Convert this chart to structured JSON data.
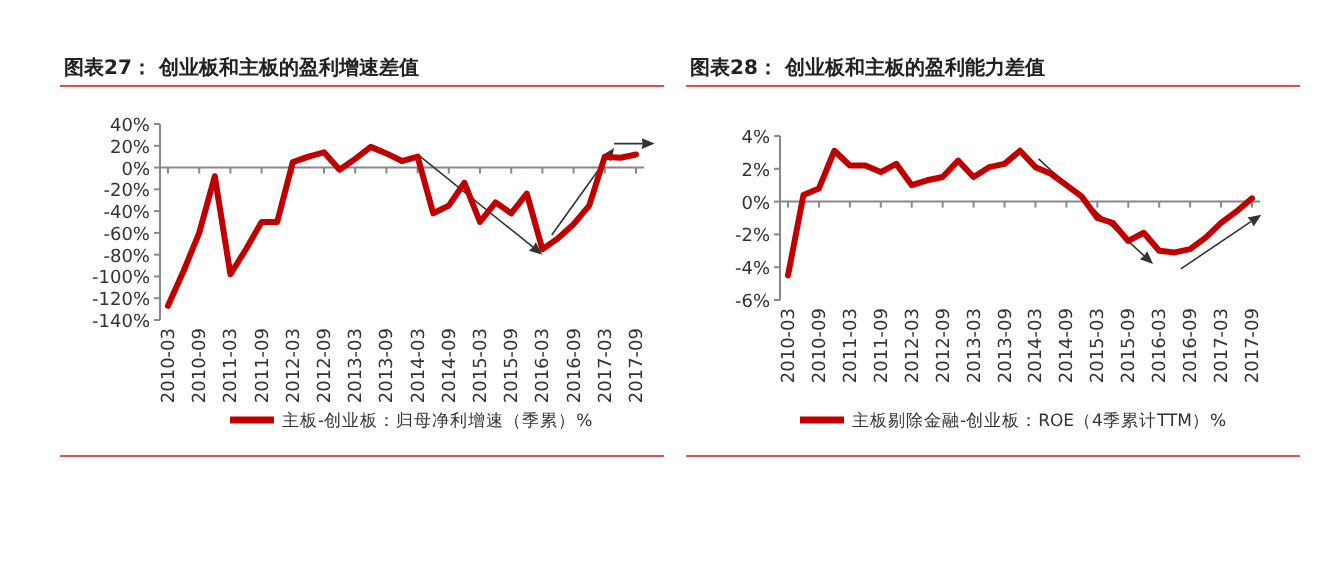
{
  "chart_data": [
    {
      "type": "line",
      "title": "图表27：  创业板和主板的盈利增速差值",
      "categories": [
        "2010-03",
        null,
        "2010-09",
        null,
        "2011-03",
        null,
        "2011-09",
        null,
        "2012-03",
        null,
        "2012-09",
        null,
        "2013-03",
        null,
        "2013-09",
        null,
        "2014-03",
        null,
        "2014-09",
        null,
        "2015-03",
        null,
        "2015-09",
        null,
        "2016-03",
        null,
        "2016-09",
        null,
        "2017-03",
        null,
        "2017-09"
      ],
      "series": [
        {
          "name": "主板-创业板：归母净利增速（季累）%",
          "color": "#c00000",
          "values": [
            -127,
            -95,
            -60,
            -8,
            -98,
            -75,
            -50,
            -50,
            5,
            10,
            14,
            -2,
            8,
            19,
            13,
            6,
            10,
            -42,
            -35,
            -14,
            -50,
            -32,
            -42,
            -24,
            -75,
            -65,
            -52,
            -35,
            10,
            9,
            12
          ]
        }
      ],
      "ylim": [
        -140,
        40
      ],
      "yticks": [
        {
          "value": -140,
          "label": "-140%"
        },
        {
          "value": -120,
          "label": "-120%"
        },
        {
          "value": -100,
          "label": "-100%"
        },
        {
          "value": -80,
          "label": "-80%"
        },
        {
          "value": -60,
          "label": "-60%"
        },
        {
          "value": -40,
          "label": "-40%"
        },
        {
          "value": -20,
          "label": "-20%"
        },
        {
          "value": 0,
          "label": "0%"
        },
        {
          "value": 20,
          "label": "20%"
        },
        {
          "value": 40,
          "label": "40%"
        }
      ],
      "legend": "bottom",
      "line_style": "solid",
      "marker": "none"
    },
    {
      "type": "line",
      "title": "图表28：  创业板和主板的盈利能力差值",
      "categories": [
        "2010-03",
        null,
        "2010-09",
        null,
        "2011-03",
        null,
        "2011-09",
        null,
        "2012-03",
        null,
        "2012-09",
        null,
        "2013-03",
        null,
        "2013-09",
        null,
        "2014-03",
        null,
        "2014-09",
        null,
        "2015-03",
        null,
        "2015-09",
        null,
        "2016-03",
        null,
        "2016-09",
        null,
        "2017-03",
        null,
        "2017-09"
      ],
      "series": [
        {
          "name": "主板剔除金融-创业板：ROE（4季累计TTM）%",
          "color": "#c00000",
          "values": [
            -4.5,
            0.4,
            0.8,
            3.1,
            2.2,
            2.2,
            1.8,
            2.3,
            1.0,
            1.3,
            1.5,
            2.5,
            1.5,
            2.1,
            2.3,
            3.1,
            2.1,
            1.7,
            1.0,
            0.3,
            -1.0,
            -1.3,
            -2.4,
            -1.9,
            -3.0,
            -3.1,
            -2.9,
            -2.2,
            -1.3,
            -0.6,
            0.2
          ]
        }
      ],
      "ylim": [
        -6,
        4
      ],
      "yticks": [
        {
          "value": -6,
          "label": "-6%"
        },
        {
          "value": -4,
          "label": "-4%"
        },
        {
          "value": -2,
          "label": "-2%"
        },
        {
          "value": 0,
          "label": "0%"
        },
        {
          "value": 2,
          "label": "2%"
        },
        {
          "value": 4,
          "label": "4%"
        }
      ],
      "legend": "bottom",
      "line_style": "solid",
      "marker": "none"
    }
  ]
}
